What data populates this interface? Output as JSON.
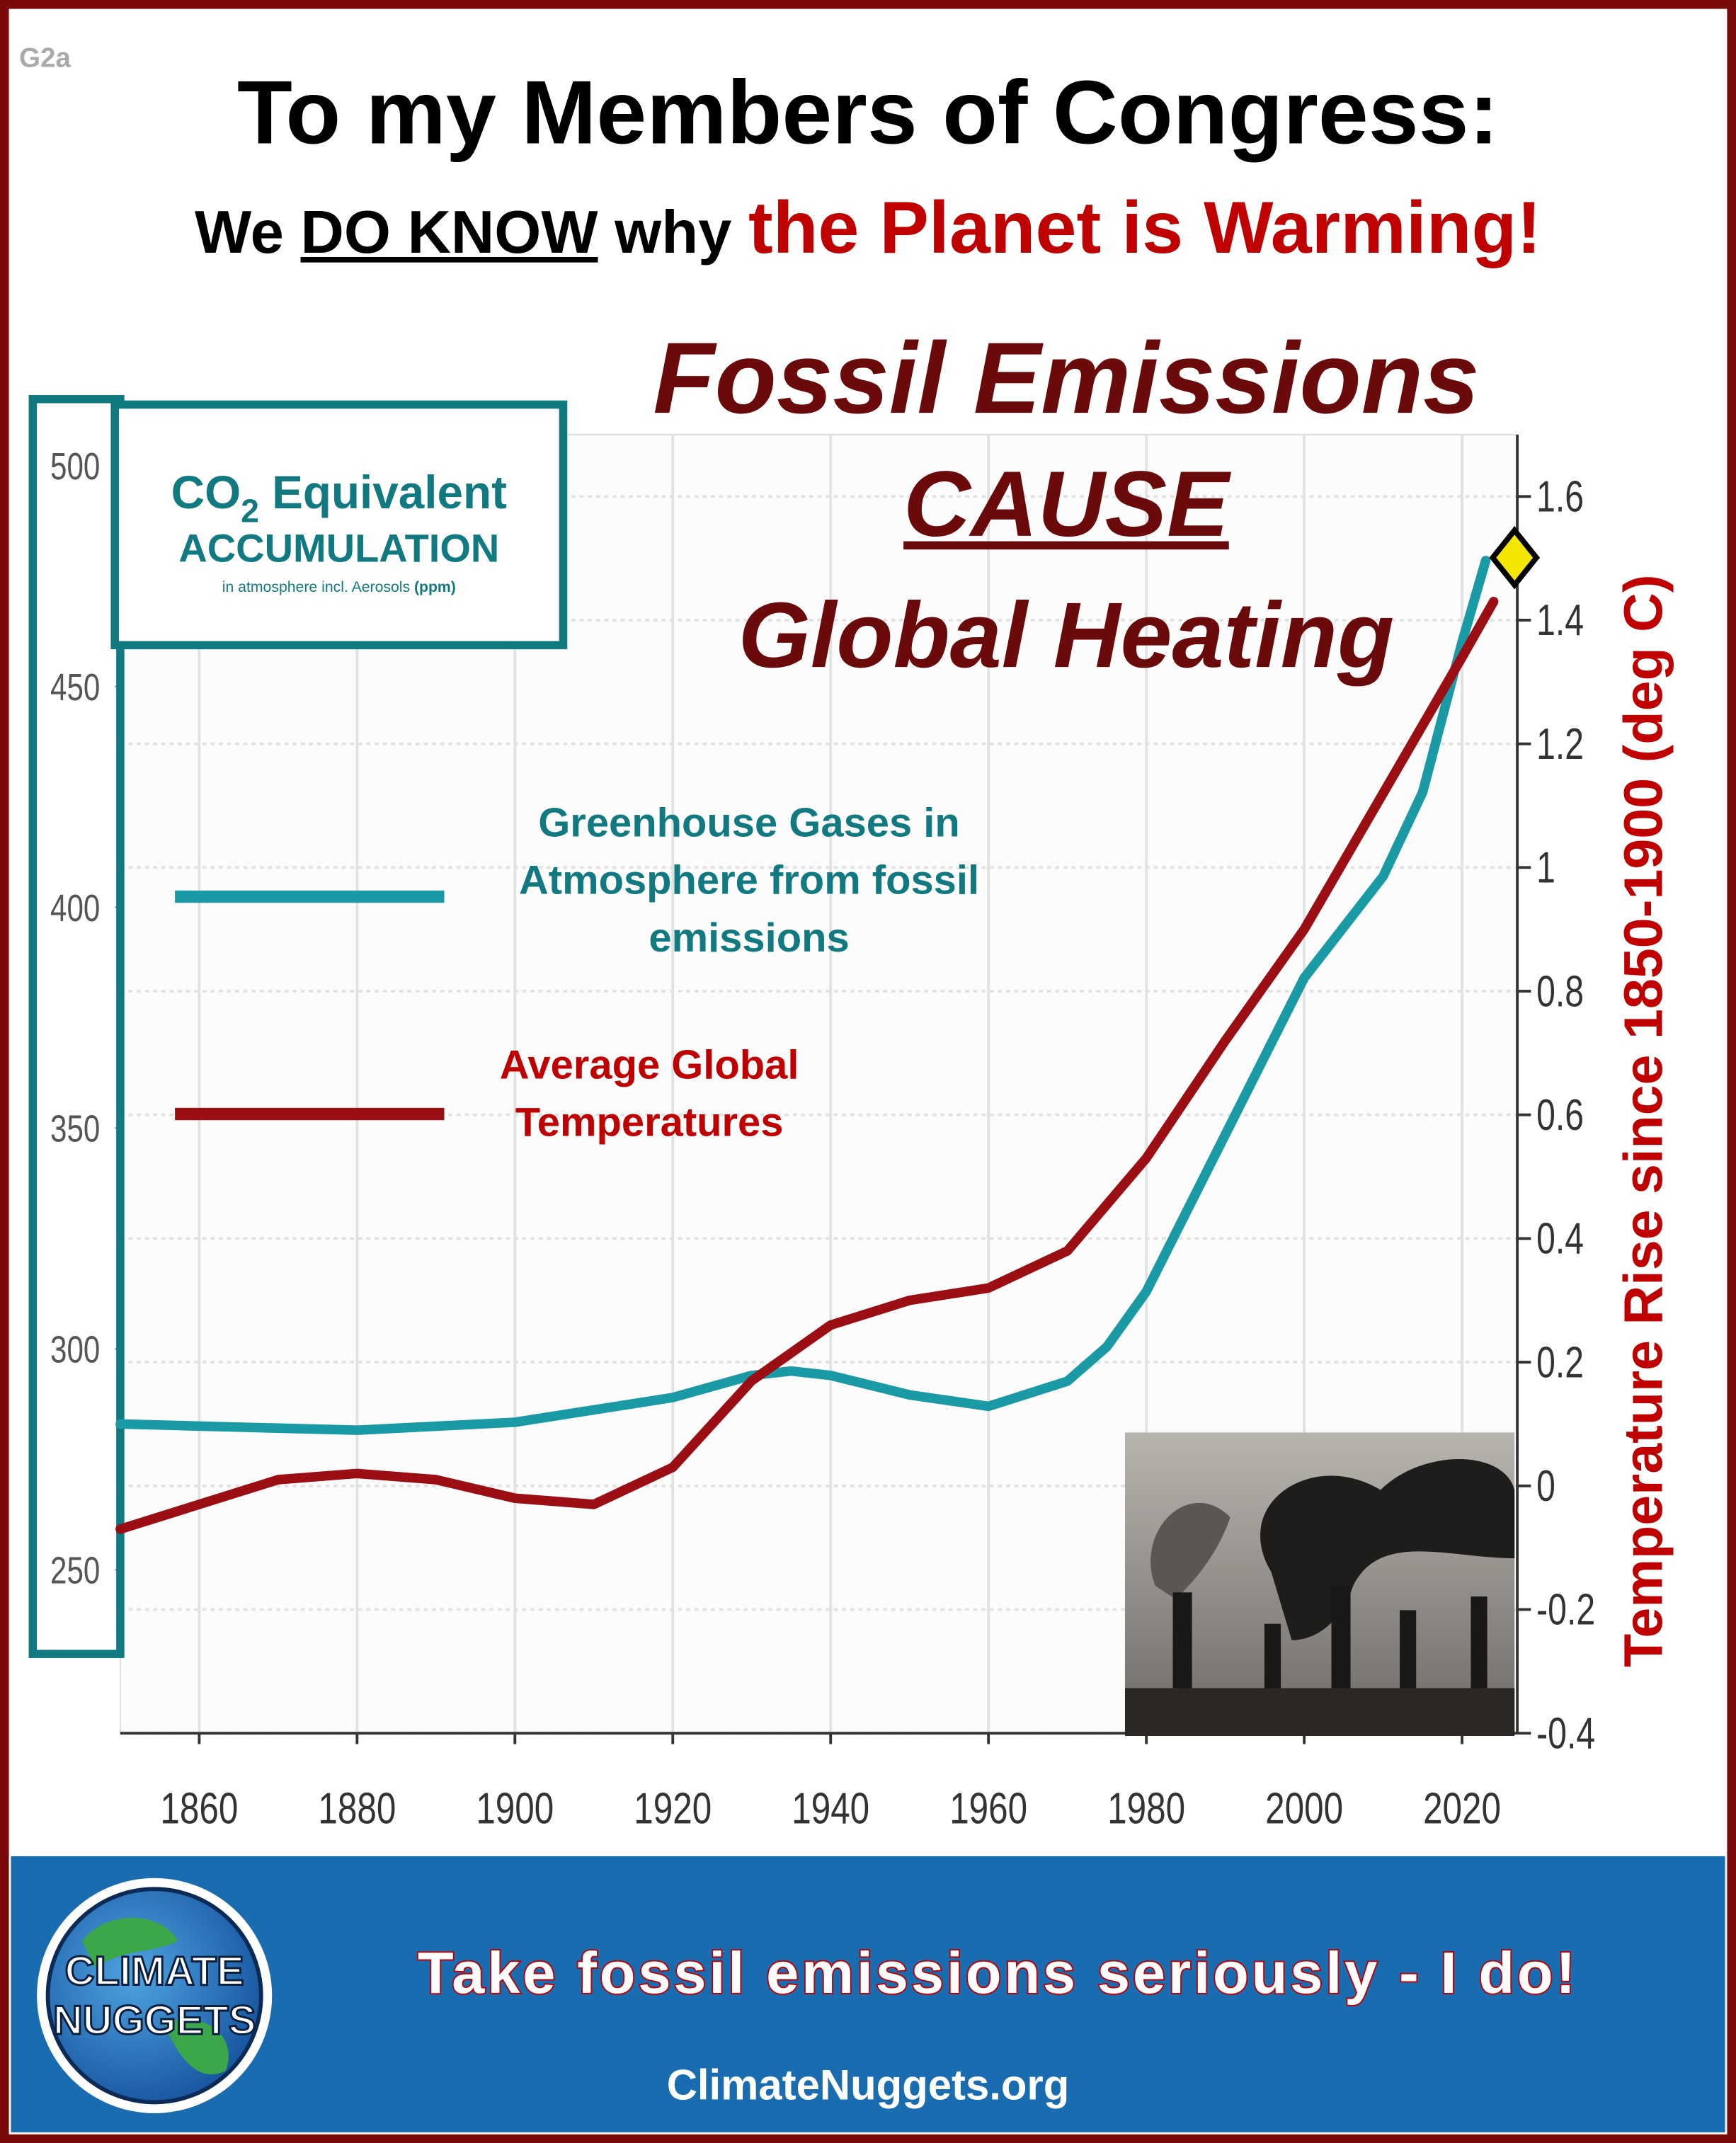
{
  "badge": "G2a",
  "header": {
    "title": "To my Members of Congress:",
    "subtitle": {
      "part1": "We",
      "part2": "DO KNOW",
      "part3": "why",
      "part4": "the Planet is Warming!"
    }
  },
  "headline": {
    "line1": "Fossil Emissions",
    "line2": "CAUSE",
    "line3": "Global Heating"
  },
  "chart_data": {
    "type": "line",
    "y_axis_box": {
      "prefix": "CO",
      "subscript": "2",
      "suffix": " Equivalent",
      "line2": "ACCUMULATION",
      "note": "in atmosphere incl. Aerosols",
      "unit": "(ppm)"
    },
    "y2label": "Temperature Rise since 1850-1900 (deg C)",
    "xlim": [
      1850,
      2027
    ],
    "xticks": [
      1860,
      1880,
      1900,
      1920,
      1940,
      1960,
      1980,
      2000,
      2020
    ],
    "ylim": [
      213,
      507
    ],
    "yticks": [
      250,
      300,
      350,
      400,
      450,
      500
    ],
    "y2lim": [
      -0.4,
      1.7
    ],
    "y2ticks": [
      -0.4,
      -0.2,
      0,
      0.2,
      0.4,
      0.6,
      0.8,
      1,
      1.2,
      1.4,
      1.6
    ],
    "grid": true,
    "series": [
      {
        "name": "Greenhouse Gases in Atmosphere from fossil emissions",
        "color": "#1a9aa5",
        "x": [
          1850,
          1880,
          1900,
          1920,
          1930,
          1935,
          1940,
          1950,
          1960,
          1970,
          1975,
          1980,
          1990,
          2000,
          2010,
          2015,
          2020,
          2023
        ],
        "values": [
          283,
          281.6,
          283.4,
          289,
          294,
          295,
          294,
          289.6,
          287,
          292.7,
          300.5,
          313,
          348.5,
          384,
          407,
          426,
          460,
          478.5
        ]
      },
      {
        "name": "Average Global Temperatures",
        "color": "#9b0f14",
        "axis": "y2",
        "x": [
          1850,
          1860,
          1870,
          1880,
          1890,
          1900,
          1910,
          1920,
          1930,
          1940,
          1950,
          1960,
          1970,
          1980,
          1990,
          2000,
          2010,
          2020,
          2024
        ],
        "values": [
          -0.07,
          -0.03,
          0.01,
          0.02,
          0.01,
          -0.02,
          -0.03,
          0.03,
          0.17,
          0.26,
          0.3,
          0.32,
          0.38,
          0.53,
          0.72,
          0.9,
          1.12,
          1.34,
          1.43
        ]
      }
    ]
  },
  "footer": {
    "slogan": "Take fossil emissions seriously - I do!",
    "url": "ClimateNuggets.org",
    "logo_line1": "CLIMATE",
    "logo_line2": "NUGGETS"
  }
}
